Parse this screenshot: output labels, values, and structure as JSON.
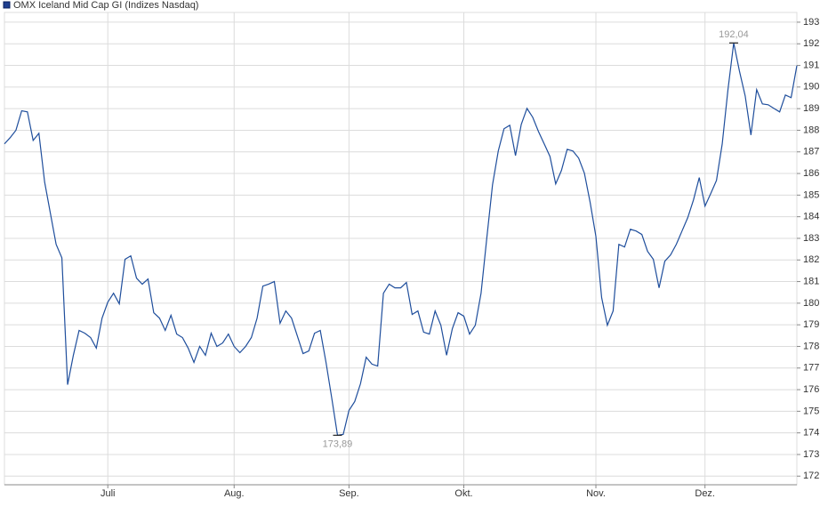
{
  "chart_data": {
    "type": "line",
    "series": [
      {
        "name": "OMX Iceland Mid Cap GI  (Indizes Nasdaq)",
        "color": "#1f4e9c",
        "values": [
          187.37,
          187.66,
          188.0,
          188.9,
          188.85,
          187.53,
          187.86,
          185.6,
          184.16,
          182.72,
          182.1,
          176.23,
          177.59,
          178.74,
          178.61,
          178.41,
          177.92,
          179.31,
          180.05,
          180.46,
          179.97,
          182.03,
          182.19,
          181.16,
          180.88,
          181.12,
          179.56,
          179.31,
          178.74,
          179.44,
          178.57,
          178.41,
          177.92,
          177.26,
          178.0,
          177.59,
          178.61,
          178.0,
          178.16,
          178.57,
          178.0,
          177.71,
          178.0,
          178.41,
          179.31,
          180.79,
          180.88,
          181.0,
          179.07,
          179.64,
          179.31,
          178.49,
          177.67,
          177.79,
          178.61,
          178.74,
          177.26,
          175.61,
          173.89,
          173.93,
          175.04,
          175.45,
          176.27,
          177.5,
          177.18,
          177.09,
          180.46,
          180.88,
          180.71,
          180.71,
          180.96,
          179.48,
          179.64,
          178.66,
          178.57,
          179.64,
          178.98,
          177.59,
          178.82,
          179.56,
          179.4,
          178.57,
          178.98,
          180.46,
          183.01,
          185.48,
          187.04,
          188.07,
          188.23,
          186.83,
          188.27,
          189.01,
          188.6,
          187.94,
          187.37,
          186.79,
          185.52,
          186.14,
          187.12,
          187.04,
          186.71,
          186.01,
          184.66,
          183.09,
          180.26,
          178.98,
          179.64,
          182.72,
          182.6,
          183.42,
          183.34,
          183.18,
          182.4,
          182.03,
          180.71,
          181.94,
          182.23,
          182.72,
          183.34,
          183.96,
          184.78,
          185.81,
          184.49,
          185.07,
          185.68,
          187.37,
          189.88,
          192.04,
          190.74,
          189.59,
          187.78,
          189.88,
          189.22,
          189.18,
          189.01,
          188.85,
          189.63,
          189.51,
          190.99
        ],
        "value_labels": [
          null,
          null,
          null,
          null,
          null,
          null,
          null,
          null,
          null,
          null,
          null,
          null,
          null,
          null,
          null,
          null,
          null,
          null,
          null,
          null,
          null,
          null,
          null,
          null,
          null,
          null,
          null,
          null,
          null,
          null,
          null,
          null,
          null,
          null,
          null,
          null,
          null,
          null,
          null,
          null,
          null,
          null,
          null,
          null,
          null,
          null,
          null,
          null,
          null,
          null,
          null,
          null,
          null,
          null,
          null,
          null,
          null,
          null,
          "173,89",
          null,
          null,
          null,
          null,
          null,
          null,
          null,
          null,
          null,
          null,
          null,
          null,
          null,
          null,
          null,
          null,
          null,
          null,
          null,
          null,
          null,
          null,
          null,
          null,
          null,
          null,
          null,
          null,
          null,
          null,
          null,
          null,
          null,
          null,
          null,
          null,
          null,
          null,
          null,
          null,
          null,
          null,
          null,
          null,
          null,
          null,
          null,
          null,
          null,
          null,
          null,
          null,
          null,
          null,
          null,
          null,
          null,
          null,
          null,
          null,
          null,
          null,
          null,
          null,
          null,
          null,
          null,
          null,
          "192,04",
          null,
          null,
          null,
          null,
          null,
          null,
          null,
          null,
          null,
          null,
          null
        ]
      }
    ],
    "categories": [
      null,
      null,
      null,
      null,
      null,
      null,
      null,
      null,
      null,
      null,
      null,
      null,
      null,
      null,
      null,
      null,
      null,
      null,
      "Juli",
      null,
      null,
      null,
      null,
      null,
      null,
      null,
      null,
      null,
      null,
      null,
      null,
      null,
      null,
      null,
      null,
      null,
      null,
      null,
      null,
      null,
      "Aug.",
      null,
      null,
      null,
      null,
      null,
      null,
      null,
      null,
      null,
      null,
      null,
      null,
      null,
      null,
      null,
      null,
      null,
      null,
      null,
      "Sep.",
      null,
      null,
      null,
      null,
      null,
      null,
      null,
      null,
      null,
      null,
      null,
      null,
      null,
      null,
      null,
      null,
      null,
      null,
      null,
      "Okt.",
      null,
      null,
      null,
      null,
      null,
      null,
      null,
      null,
      null,
      null,
      null,
      null,
      null,
      null,
      null,
      null,
      null,
      null,
      null,
      null,
      null,
      null,
      "Nov.",
      null,
      null,
      null,
      null,
      null,
      null,
      null,
      null,
      null,
      null,
      null,
      null,
      null,
      null,
      null,
      null,
      null,
      null,
      "Dez.",
      null,
      null,
      null,
      null,
      null,
      null,
      null,
      null,
      null,
      null,
      null,
      null,
      null,
      null,
      null,
      null
    ],
    "ylim": [
      171.6,
      193.45
    ],
    "yticks": [
      172,
      173,
      174,
      175,
      176,
      177,
      178,
      179,
      180,
      181,
      182,
      183,
      184,
      185,
      186,
      187,
      188,
      189,
      190,
      191,
      192,
      193
    ],
    "grid": true
  }
}
